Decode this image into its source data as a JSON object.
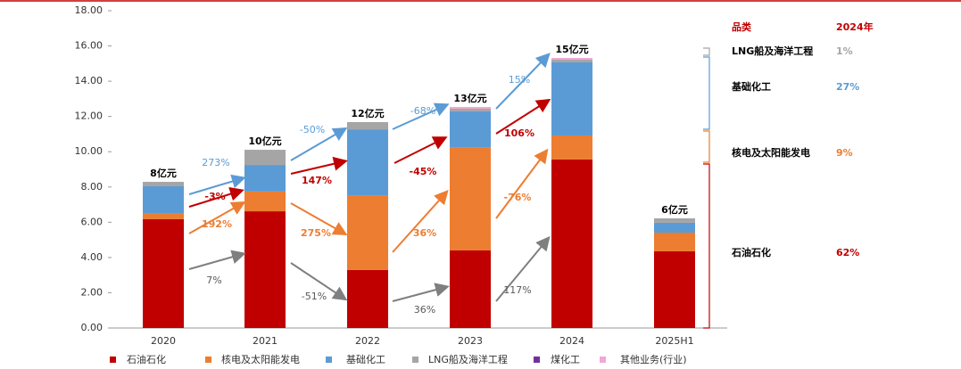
{
  "chart_data": {
    "type": "bar",
    "stacked": true,
    "categories": [
      "2020",
      "2021",
      "2022",
      "2023",
      "2024",
      "2025H1"
    ],
    "ylim": [
      0,
      18
    ],
    "yticks": [
      {
        "value": 0,
        "label": "0.00"
      },
      {
        "value": 2,
        "label": "2.00"
      },
      {
        "value": 4,
        "label": "4.00"
      },
      {
        "value": 6,
        "label": "6.00"
      },
      {
        "value": 8,
        "label": "8.00"
      },
      {
        "value": 10,
        "label": "10.00"
      },
      {
        "value": 12,
        "label": "12.00"
      },
      {
        "value": 14,
        "label": "14.00"
      },
      {
        "value": 16,
        "label": "16.00"
      },
      {
        "value": 18,
        "label": "18.00"
      }
    ],
    "grid": false,
    "legend": "bottom",
    "total_labels": [
      "8亿元",
      "10亿元",
      "12亿元",
      "13亿元",
      "15亿元",
      "6亿元"
    ],
    "series": [
      {
        "name": "石油石化",
        "color": "#c00000",
        "values": [
          6.17,
          6.62,
          3.29,
          4.4,
          9.56,
          4.35
        ],
        "growth_labels": [
          "-3%",
          "147%",
          "-45%",
          "106%"
        ]
      },
      {
        "name": "核电及太阳能发电",
        "color": "#ed7d31",
        "values": [
          0.35,
          1.12,
          4.24,
          5.86,
          1.36,
          1.06
        ],
        "growth_labels": [
          "192%",
          "275%",
          "36%",
          "-76%"
        ]
      },
      {
        "name": "基础化工",
        "color": "#5b9bd5",
        "values": [
          1.52,
          1.51,
          3.74,
          2.03,
          4.15,
          0.56
        ],
        "growth_labels": [
          "273%",
          "-50%",
          "-68%",
          "15%"
        ]
      },
      {
        "name": "LNG船及海洋工程",
        "color": "#a5a5a5",
        "values": [
          0.25,
          0.86,
          0.41,
          0.15,
          0.15,
          0.25
        ],
        "growth_labels": [
          "7%",
          "-51%",
          "36%",
          "117%"
        ]
      },
      {
        "name": "煤化工",
        "color": "#7030a0",
        "values": [
          0,
          0,
          0,
          0,
          0,
          0
        ]
      },
      {
        "name": "其他业务(行业)",
        "color": "#f4a6d6",
        "values": [
          0,
          0,
          0,
          0.1,
          0.1,
          0
        ]
      }
    ],
    "share_table": {
      "headers": [
        "品类",
        "2024年"
      ],
      "rows": [
        {
          "category": "LNG船及海洋工程",
          "share": "1%",
          "color": "#a5a5a5"
        },
        {
          "category": "基础化工",
          "share": "27%",
          "color": "#5b9bd5"
        },
        {
          "category": "核电及太阳能发电",
          "share": "9%",
          "color": "#ed7d31"
        },
        {
          "category": "石油石化",
          "share": "62%",
          "color": "#c00000"
        }
      ]
    }
  }
}
